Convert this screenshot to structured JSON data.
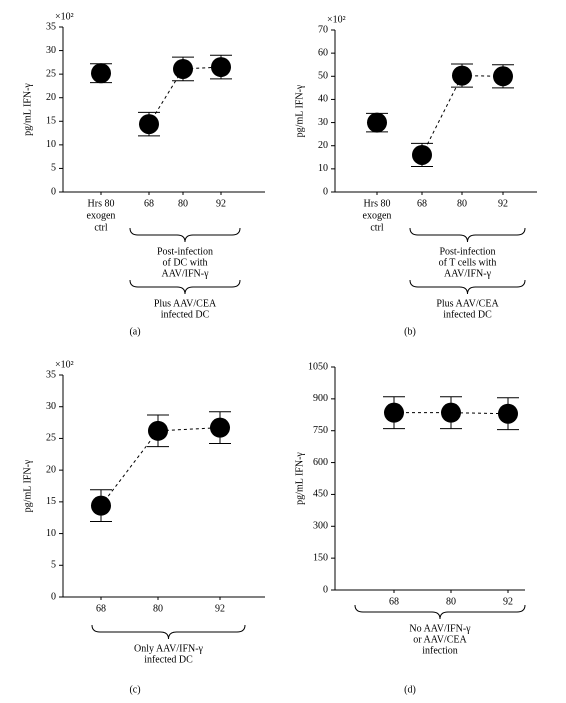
{
  "chart_data": [
    {
      "type": "errorbar",
      "panel_label": "(a)",
      "y_label": "pg/mL IFN-γ",
      "scale_label": "×10²",
      "categories": [
        [
          "Hrs 80",
          "exogen",
          "ctrl"
        ],
        "68",
        "80",
        "92"
      ],
      "values": [
        25.2,
        14.4,
        26.1,
        26.5
      ],
      "errors": [
        2,
        2.5,
        2.5,
        2.5
      ],
      "connected": [
        false,
        true,
        true,
        true
      ],
      "color": "#000000",
      "ylim": [
        0,
        35
      ],
      "yticks": [
        0,
        5,
        10,
        15,
        20,
        25,
        30,
        35
      ],
      "braces": [
        [
          "Post-infection",
          "of DC with",
          "AAV/IFN-γ"
        ],
        [
          "Plus AAV/CEA",
          "infected DC"
        ]
      ]
    },
    {
      "type": "errorbar",
      "panel_label": "(b)",
      "y_label": "pg/mL IFN-γ",
      "scale_label": "×10²",
      "categories": [
        [
          "Hrs 80",
          "exogen",
          "ctrl"
        ],
        "68",
        "80",
        "92"
      ],
      "values": [
        30,
        16,
        50.3,
        50
      ],
      "errors": [
        4,
        5,
        5,
        5
      ],
      "connected": [
        false,
        true,
        true,
        true
      ],
      "color": "#000000",
      "ylim": [
        0,
        70
      ],
      "yticks": [
        0,
        10,
        20,
        30,
        40,
        50,
        60,
        70
      ],
      "braces": [
        [
          "Post-infection",
          "of T cells with",
          "AAV/IFN-γ"
        ],
        [
          "Plus AAV/CEA",
          "infected DC"
        ]
      ]
    },
    {
      "type": "errorbar",
      "panel_label": "(c)",
      "y_label": "pg/mL IFN-γ",
      "scale_label": "×10²",
      "categories": [
        "68",
        "80",
        "92"
      ],
      "values": [
        14.4,
        26.2,
        26.7
      ],
      "errors": [
        2.5,
        2.5,
        2.5
      ],
      "connected": [
        true,
        true,
        true
      ],
      "color": "#000000",
      "ylim": [
        0,
        35
      ],
      "yticks": [
        0,
        5,
        10,
        15,
        20,
        25,
        30,
        35
      ],
      "braces": [
        [
          "Only AAV/IFN-γ",
          "infected DC"
        ]
      ]
    },
    {
      "type": "errorbar",
      "panel_label": "(d)",
      "y_label": "pg/mL IFN-γ",
      "categories": [
        "68",
        "80",
        "92"
      ],
      "values": [
        835,
        835,
        830
      ],
      "errors": [
        75,
        75,
        75
      ],
      "connected": [
        true,
        true,
        true
      ],
      "color": "#000000",
      "ylim": [
        0,
        1050
      ],
      "yticks": [
        0,
        150,
        300,
        450,
        600,
        750,
        900,
        1050
      ],
      "braces": [
        [
          "No AAV/IFN-γ",
          "or AAV/CEA",
          "infection"
        ]
      ]
    }
  ]
}
